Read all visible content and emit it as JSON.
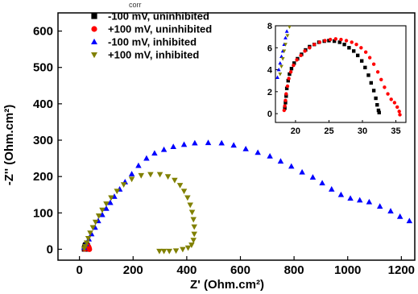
{
  "header_fragment": "corr",
  "chart_data": [
    {
      "type": "scatter",
      "title": "",
      "xlabel": "Z' (Ohm.cm²)",
      "ylabel": "-Z'' (Ohm.cm²)",
      "xlim": [
        -80,
        1250
      ],
      "ylim": [
        -30,
        650
      ],
      "xticks": [
        0,
        200,
        400,
        600,
        800,
        1000,
        1200
      ],
      "yticks": [
        0,
        100,
        200,
        300,
        400,
        500,
        600
      ],
      "legend_position": "top-left",
      "series": [
        {
          "name": "-100 mV, uninhibited",
          "color": "#000000",
          "marker": "square",
          "points": [
            [
              19,
              1
            ],
            [
              20,
              3
            ],
            [
              21,
              6
            ],
            [
              22,
              9
            ],
            [
              23,
              11
            ],
            [
              25,
              12
            ],
            [
              27,
              11
            ],
            [
              29,
              9
            ],
            [
              30,
              6
            ],
            [
              31,
              3
            ],
            [
              32,
              1
            ]
          ]
        },
        {
          "name": "+100 mV, uninhibited",
          "color": "#ff0000",
          "marker": "circle",
          "points": [
            [
              20,
              1
            ],
            [
              22,
              4
            ],
            [
              24,
              8
            ],
            [
              27,
              10
            ],
            [
              30,
              10
            ],
            [
              33,
              8
            ],
            [
              35,
              5
            ],
            [
              36,
              2
            ],
            [
              37,
              0
            ]
          ]
        },
        {
          "name": "-100 mV, inhibited",
          "color": "#0000ff",
          "marker": "triangle-up",
          "points": [
            [
              18,
              5
            ],
            [
              25,
              15
            ],
            [
              35,
              28
            ],
            [
              45,
              42
            ],
            [
              58,
              60
            ],
            [
              70,
              78
            ],
            [
              85,
              95
            ],
            [
              100,
              112
            ],
            [
              115,
              128
            ],
            [
              130,
              145
            ],
            [
              150,
              165
            ],
            [
              170,
              185
            ],
            [
              195,
              207
            ],
            [
              220,
              230
            ],
            [
              250,
              250
            ],
            [
              280,
              264
            ],
            [
              315,
              274
            ],
            [
              350,
              282
            ],
            [
              390,
              288
            ],
            [
              430,
              292
            ],
            [
              480,
              293
            ],
            [
              530,
              292
            ],
            [
              575,
              286
            ],
            [
              620,
              276
            ],
            [
              665,
              266
            ],
            [
              710,
              256
            ],
            [
              750,
              242
            ],
            [
              790,
              228
            ],
            [
              830,
              212
            ],
            [
              870,
              198
            ],
            [
              905,
              182
            ],
            [
              940,
              165
            ],
            [
              975,
              150
            ],
            [
              1010,
              140
            ],
            [
              1045,
              135
            ],
            [
              1080,
              130
            ],
            [
              1120,
              118
            ],
            [
              1160,
              105
            ],
            [
              1195,
              90
            ],
            [
              1230,
              78
            ]
          ]
        },
        {
          "name": "+100 mV, inhibited",
          "color": "#808000",
          "marker": "triangle-down",
          "points": [
            [
              18,
              2
            ],
            [
              22,
              8
            ],
            [
              27,
              18
            ],
            [
              33,
              30
            ],
            [
              40,
              45
            ],
            [
              50,
              60
            ],
            [
              60,
              75
            ],
            [
              72,
              92
            ],
            [
              85,
              108
            ],
            [
              100,
              125
            ],
            [
              118,
              142
            ],
            [
              140,
              160
            ],
            [
              165,
              178
            ],
            [
              195,
              193
            ],
            [
              230,
              203
            ],
            [
              265,
              206
            ],
            [
              300,
              206
            ],
            [
              330,
              200
            ],
            [
              355,
              190
            ],
            [
              375,
              176
            ],
            [
              390,
              160
            ],
            [
              403,
              142
            ],
            [
              413,
              122
            ],
            [
              420,
              102
            ],
            [
              425,
              82
            ],
            [
              428,
              62
            ],
            [
              428,
              42
            ],
            [
              425,
              25
            ],
            [
              418,
              12
            ],
            [
              405,
              4
            ],
            [
              385,
              0
            ],
            [
              360,
              -4
            ],
            [
              335,
              -5
            ],
            [
              315,
              -5
            ],
            [
              298,
              -5
            ]
          ]
        }
      ]
    },
    {
      "type": "scatter",
      "title": "",
      "xlabel": "",
      "ylabel": "",
      "xlim": [
        17,
        36.5
      ],
      "ylim": [
        -0.8,
        8
      ],
      "xticks": [
        20,
        25,
        30,
        35
      ],
      "yticks": [
        0,
        2,
        4,
        6,
        8
      ],
      "series": [
        {
          "name": "-100 mV, uninhibited",
          "color": "#000000",
          "marker": "square",
          "points": [
            [
              18.4,
              0.5
            ],
            [
              18.5,
              1.0
            ],
            [
              18.6,
              1.6
            ],
            [
              18.7,
              2.3
            ],
            [
              18.9,
              3.0
            ],
            [
              19.1,
              3.6
            ],
            [
              19.4,
              4.1
            ],
            [
              19.8,
              4.6
            ],
            [
              20.3,
              5.0
            ],
            [
              20.9,
              5.4
            ],
            [
              21.5,
              5.8
            ],
            [
              22.1,
              6.1
            ],
            [
              22.8,
              6.3
            ],
            [
              23.5,
              6.5
            ],
            [
              24.3,
              6.6
            ],
            [
              25.0,
              6.65
            ],
            [
              25.8,
              6.6
            ],
            [
              26.6,
              6.5
            ],
            [
              27.3,
              6.3
            ],
            [
              28.0,
              6.0
            ],
            [
              28.7,
              5.7
            ],
            [
              29.3,
              5.3
            ],
            [
              29.9,
              4.8
            ],
            [
              30.4,
              4.2
            ],
            [
              30.9,
              3.5
            ],
            [
              31.3,
              2.8
            ],
            [
              31.7,
              2.1
            ],
            [
              32.0,
              1.4
            ],
            [
              32.2,
              0.8
            ],
            [
              32.4,
              0.3
            ],
            [
              32.5,
              0.1
            ]
          ]
        },
        {
          "name": "+100 mV, uninhibited",
          "color": "#ff0000",
          "marker": "circle",
          "points": [
            [
              18.3,
              0.3
            ],
            [
              18.4,
              0.7
            ],
            [
              18.5,
              1.2
            ],
            [
              18.6,
              1.8
            ],
            [
              18.8,
              2.5
            ],
            [
              19.0,
              3.2
            ],
            [
              19.3,
              3.8
            ],
            [
              19.7,
              4.4
            ],
            [
              20.2,
              4.9
            ],
            [
              20.8,
              5.3
            ],
            [
              21.4,
              5.7
            ],
            [
              22.1,
              6.0
            ],
            [
              22.8,
              6.3
            ],
            [
              23.6,
              6.5
            ],
            [
              24.4,
              6.65
            ],
            [
              25.2,
              6.75
            ],
            [
              26.0,
              6.8
            ],
            [
              26.8,
              6.75
            ],
            [
              27.6,
              6.65
            ],
            [
              28.4,
              6.5
            ],
            [
              29.1,
              6.3
            ],
            [
              29.8,
              6.0
            ],
            [
              30.5,
              5.6
            ],
            [
              31.1,
              5.1
            ],
            [
              31.7,
              4.5
            ],
            [
              32.3,
              3.8
            ],
            [
              32.8,
              3.1
            ],
            [
              33.3,
              2.4
            ],
            [
              33.8,
              1.8
            ],
            [
              34.3,
              1.3
            ],
            [
              34.8,
              1.0
            ],
            [
              35.2,
              0.6
            ],
            [
              35.5,
              0.2
            ],
            [
              35.6,
              -0.1
            ]
          ]
        },
        {
          "name": "-100 mV, inhibited",
          "color": "#0000ff",
          "marker": "triangle-up",
          "points": [
            [
              17.3,
              3.3
            ],
            [
              17.5,
              4.0
            ],
            [
              17.7,
              4.6
            ],
            [
              17.9,
              5.2
            ],
            [
              18.1,
              5.7
            ],
            [
              18.3,
              6.3
            ],
            [
              18.5,
              6.9
            ],
            [
              18.7,
              7.5
            ]
          ]
        },
        {
          "name": "+100 mV, inhibited",
          "color": "#808000",
          "marker": "triangle-down",
          "points": [
            [
              17.7,
              3.6
            ],
            [
              17.9,
              4.3
            ],
            [
              18.1,
              5.0
            ],
            [
              18.3,
              5.7
            ],
            [
              18.5,
              6.3
            ],
            [
              18.8,
              7.1
            ],
            [
              19.1,
              7.9
            ]
          ]
        }
      ]
    }
  ]
}
